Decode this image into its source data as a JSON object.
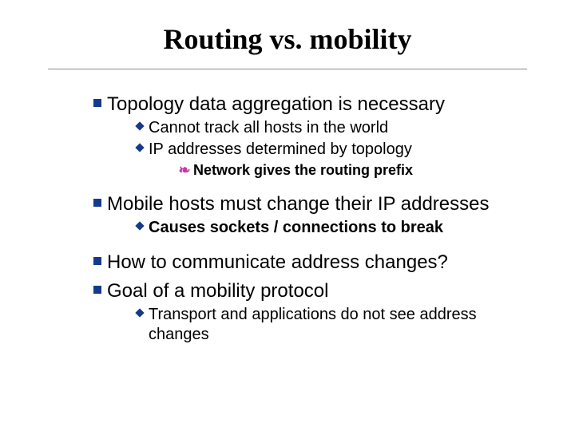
{
  "slide": {
    "title": "Routing vs. mobility",
    "title_fontsize": 36,
    "title_font": "Times New Roman",
    "title_color": "#000000",
    "divider_color": "#888888",
    "background_color": "#ffffff",
    "bullets": {
      "level1_color": "#153a8a",
      "level2_color": "#153a8a",
      "level3_color": "#c935b0",
      "level1_fontsize": 24,
      "level2_fontsize": 20,
      "level3_fontsize": 18
    },
    "content": {
      "p1": "Topology data aggregation is necessary",
      "p1a": "Cannot track all hosts in the world",
      "p1b": "IP addresses determined by topology",
      "p1b_i": "Network gives the routing prefix",
      "p2": "Mobile hosts must change their IP addresses",
      "p2a": "Causes sockets / connections to break",
      "p3": "How to communicate address changes?",
      "p4": "Goal of a mobility protocol",
      "p4a": "Transport and applications do not see address changes"
    }
  }
}
